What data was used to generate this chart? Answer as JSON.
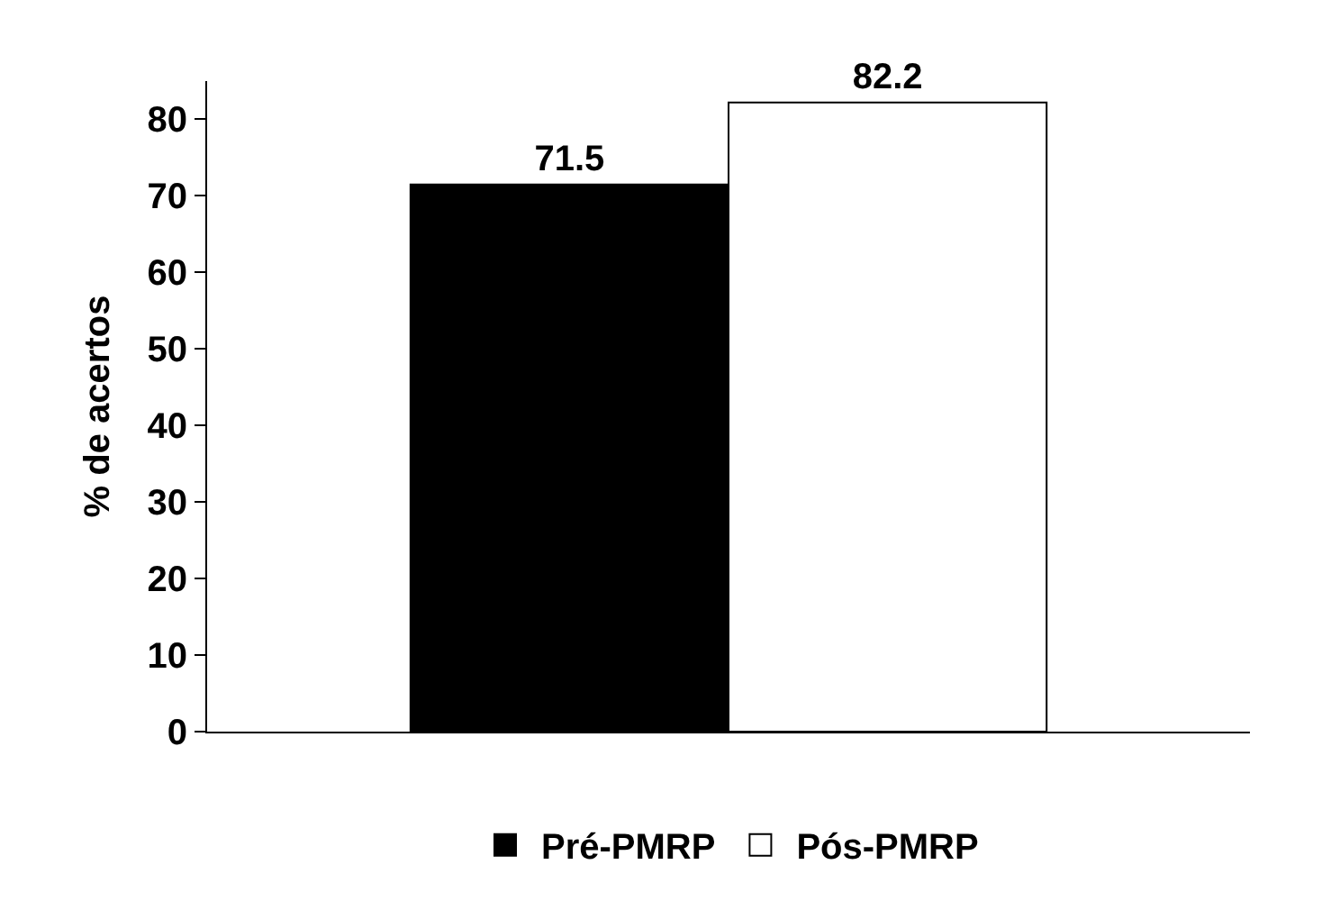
{
  "chart_data": {
    "type": "bar",
    "ylabel": "% de acertos",
    "categories": [
      null
    ],
    "series": [
      {
        "name": "Pré-PMRP",
        "color": "#000000",
        "values": [
          71.5
        ]
      },
      {
        "name": "Pós-PMRP",
        "color": "#ffffff",
        "values": [
          82.2
        ]
      }
    ],
    "ylim": [
      0,
      85
    ],
    "yticks": [
      0,
      10,
      20,
      30,
      40,
      50,
      60,
      70,
      80
    ],
    "data_labels": true,
    "legend": "bottom"
  }
}
